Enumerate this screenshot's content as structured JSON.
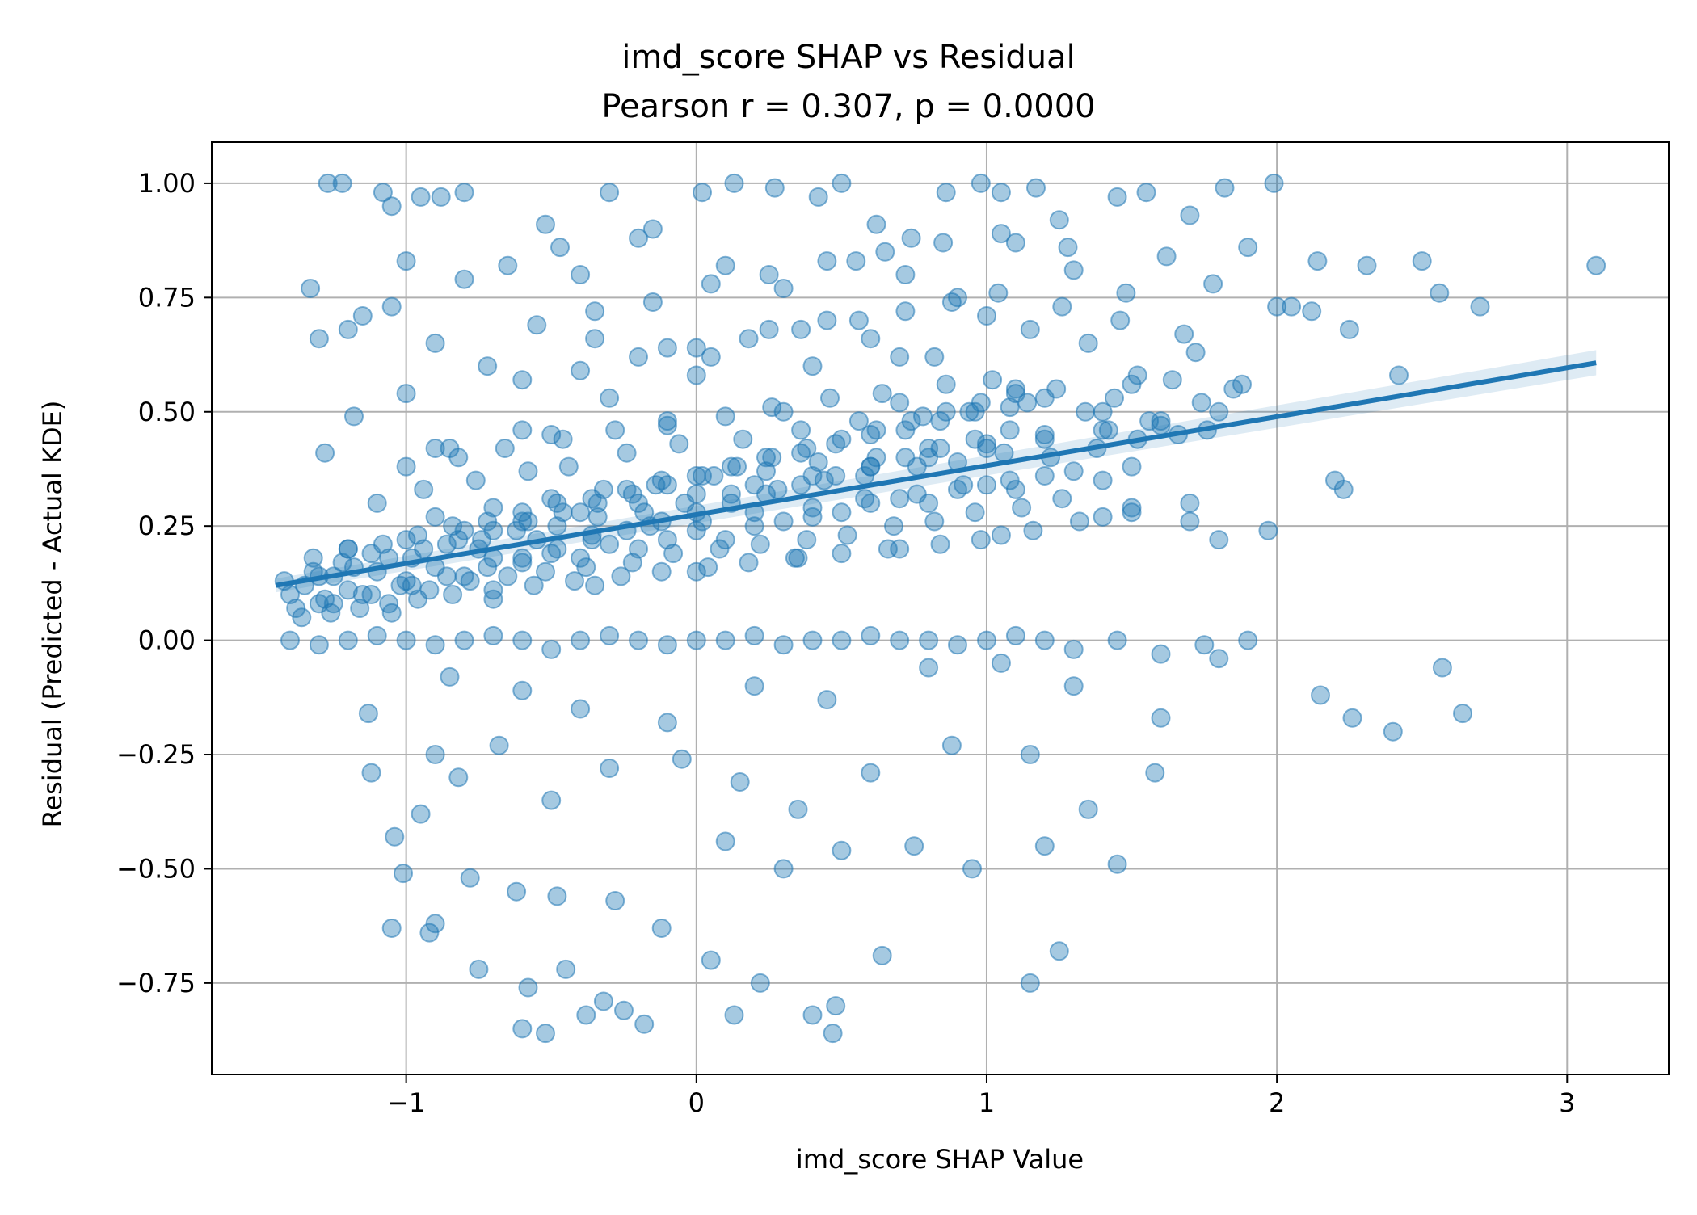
{
  "chart_data": {
    "type": "scatter",
    "title": "imd_score SHAP vs Residual",
    "subtitle": "Pearson r = 0.307, p = 0.0000",
    "xlabel": "imd_score SHAP Value",
    "ylabel": "Residual (Predicted - Actual KDE)",
    "xlim": [
      -1.67,
      3.35
    ],
    "ylim": [
      -0.95,
      1.09
    ],
    "x_ticks": [
      -1,
      0,
      1,
      2,
      3
    ],
    "x_tick_labels": [
      "−1",
      "0",
      "1",
      "2",
      "3"
    ],
    "y_ticks": [
      -0.75,
      -0.5,
      -0.25,
      0.0,
      0.25,
      0.5,
      0.75,
      1.0
    ],
    "y_tick_labels": [
      "−0.75",
      "−0.50",
      "−0.25",
      "0.00",
      "0.25",
      "0.50",
      "0.75",
      "1.00"
    ],
    "grid": true,
    "point_color": "#1f77b4",
    "point_alpha": 0.4,
    "regression": {
      "x": [
        -1.45,
        3.1
      ],
      "y": [
        0.12,
        0.607
      ],
      "ci_upper": [
        0.135,
        0.635
      ],
      "ci_lower": [
        0.105,
        0.58
      ]
    },
    "points": {
      "x": [
        -1.27,
        -1.22,
        -1.08,
        -1.05,
        -0.95,
        -0.88,
        -0.8,
        -0.52,
        -0.47,
        -0.3,
        -0.15,
        0.02,
        0.13,
        0.27,
        0.42,
        0.5,
        0.62,
        0.74,
        0.86,
        0.98,
        1.05,
        1.17,
        1.25,
        1.45,
        1.55,
        1.7,
        1.82,
        1.99,
        -1.3,
        -1.15,
        -1.0,
        -0.8,
        -0.65,
        -0.4,
        -0.2,
        0.1,
        0.3,
        0.55,
        0.72,
        0.9,
        1.1,
        1.3,
        1.48,
        1.62,
        1.78,
        1.9,
        2.05,
        2.14,
        2.31,
        2.5,
        2.56,
        2.7,
        3.1,
        -1.33,
        -1.2,
        -1.05,
        -0.9,
        -0.72,
        -0.55,
        -0.35,
        -0.1,
        0.05,
        0.25,
        0.45,
        0.6,
        0.82,
        1.0,
        1.15,
        1.35,
        1.52,
        1.72,
        1.85,
        2.0,
        2.12,
        2.25,
        2.42,
        1.97,
        2.2,
        2.23,
        1.8,
        1.7,
        1.5,
        -1.28,
        -1.18,
        -1.0,
        -0.85,
        -0.6,
        -0.3,
        0.0,
        0.4,
        0.7,
        1.1,
        1.4,
        -1.13,
        -1.12,
        -0.85,
        -0.9,
        -0.6,
        -0.4,
        -0.1,
        0.2,
        0.45,
        0.8,
        1.05,
        1.3,
        1.6,
        1.8,
        2.15,
        2.26,
        2.4,
        2.57,
        2.64,
        -1.04,
        -0.95,
        -0.82,
        -0.68,
        -0.5,
        -0.3,
        -0.05,
        0.15,
        0.35,
        0.6,
        0.88,
        1.15,
        1.35,
        1.58,
        -1.01,
        -0.9,
        -0.78,
        -0.62,
        -0.48,
        -0.28,
        -0.12,
        0.1,
        0.3,
        0.5,
        0.75,
        0.95,
        1.2,
        1.45,
        -1.05,
        -0.92,
        -0.75,
        -0.58,
        -0.45,
        -0.32,
        -0.18,
        0.05,
        0.22,
        0.48,
        0.64,
        -0.6,
        -0.52,
        -0.38,
        -0.25,
        0.13,
        0.4,
        0.47,
        1.15,
        1.25,
        -1.4,
        -1.35,
        -1.3,
        -1.25,
        -1.2,
        -1.1,
        -1.0,
        -0.9,
        -0.8,
        -0.7,
        -0.6,
        -0.5,
        -0.4,
        -0.3,
        -0.2,
        -0.1,
        0.0,
        0.1,
        0.2,
        0.3,
        0.4,
        0.5,
        0.6,
        0.7,
        0.8,
        0.9,
        1.0,
        1.1,
        1.2,
        -1.38,
        -1.28,
        -1.15,
        -1.02,
        -0.92,
        -0.78,
        -0.65,
        -0.52,
        -0.38,
        -0.22,
        -0.08,
        0.08,
        0.22,
        0.38,
        0.52,
        0.68,
        0.82,
        0.96,
        1.12,
        1.26,
        1.4,
        -1.42,
        -1.32,
        -1.22,
        -1.12,
        -0.98,
        -0.86,
        -0.74,
        -0.62,
        -0.48,
        -0.34,
        -0.18,
        -0.04,
        0.12,
        0.28,
        0.44,
        0.58,
        0.76,
        0.9,
        1.06,
        1.22,
        1.38,
        1.52,
        -1.36,
        -1.26,
        -1.16,
        -1.06,
        -0.96,
        -0.84,
        -0.7,
        -0.56,
        -0.42,
        -0.26,
        -0.12,
        0.04,
        0.18,
        0.34,
        0.5,
        0.66,
        0.84,
        0.98,
        1.16,
        1.32,
        1.5,
        1.66,
        -1.1,
        -0.94,
        -0.76,
        -0.58,
        -0.44,
        -0.24,
        -0.06,
        0.16,
        0.36,
        0.56,
        0.78,
        0.94,
        1.14,
        1.34,
        1.56,
        1.74,
        1.88,
        -1.0,
        -0.82,
        -0.66,
        -0.46,
        -0.28,
        -0.1,
        0.1,
        0.26,
        0.46,
        0.64,
        0.86,
        1.02,
        1.24,
        1.44,
        1.64,
        -0.9,
        -0.7,
        -0.5,
        -0.32,
        -0.14,
        0.06,
        0.24,
        0.42,
        0.62,
        0.8,
        1.0,
        1.2,
        1.42,
        1.6,
        1.76,
        -0.75,
        -0.55,
        -0.36,
        -0.16,
        0.02,
        0.2,
        0.4,
        0.58,
        0.76,
        0.92,
        1.08,
        1.3,
        1.5,
        -0.6,
        -0.4,
        -0.2,
        0.0,
        0.18,
        0.36,
        0.56,
        0.72,
        0.88,
        1.04,
        1.26,
        1.46,
        1.68,
        -0.35,
        -0.15,
        0.05,
        0.25,
        0.45,
        0.65,
        0.85,
        1.05,
        1.28,
        -1.4,
        -1.3,
        -1.2,
        -1.1,
        -1.0,
        -0.9,
        -0.8,
        -0.7,
        -0.6,
        -0.5,
        -0.4,
        -0.3,
        -0.2,
        -0.1,
        0.0,
        0.1,
        0.2,
        0.3,
        0.4,
        0.5,
        0.6,
        0.7,
        0.8,
        0.9,
        1.0,
        1.1,
        1.2,
        1.3,
        1.45,
        1.6,
        1.75,
        1.9,
        -1.2,
        -1.0,
        -0.8,
        -0.6,
        -0.4,
        -0.2,
        0.0,
        0.2,
        0.4,
        0.6,
        0.8,
        1.0,
        1.2,
        1.4,
        1.6,
        1.8,
        -0.9,
        -0.5,
        -0.1,
        0.3,
        0.7,
        1.1,
        1.5,
        -1.05,
        -0.7,
        -0.35,
        0.0,
        0.35,
        0.7,
        1.05,
        1.4,
        1.7,
        -1.3,
        -1.18,
        -1.06,
        -0.94,
        -0.82,
        -0.7,
        -0.58,
        -0.46,
        -0.34,
        -0.22,
        -0.1,
        0.02,
        0.14,
        0.26,
        0.38,
        0.5,
        0.62,
        0.74,
        0.86,
        0.98,
        -1.25,
        -1.12,
        -0.98,
        -0.86,
        -0.72,
        -0.6,
        -0.48,
        -0.36,
        -0.24,
        -0.12,
        0.0,
        0.12,
        0.24,
        0.36,
        0.48,
        0.6,
        0.72,
        0.84,
        0.96,
        1.08,
        -1.32,
        -1.2,
        -1.08,
        -0.96,
        -0.84,
        -0.72,
        -0.6,
        -0.48,
        -0.36,
        -0.24,
        -0.12,
        0.0,
        0.12,
        0.24,
        0.36,
        0.48,
        0.6,
        0.72,
        0.84,
        0.96,
        1.08,
        1.2
      ],
      "y": [
        1.0,
        1.0,
        0.98,
        0.95,
        0.97,
        0.97,
        0.98,
        0.91,
        0.86,
        0.98,
        0.9,
        0.98,
        1.0,
        0.99,
        0.97,
        1.0,
        0.91,
        0.88,
        0.98,
        1.0,
        0.98,
        0.99,
        0.92,
        0.97,
        0.98,
        0.93,
        0.99,
        1.0,
        0.66,
        0.71,
        0.83,
        0.79,
        0.82,
        0.8,
        0.88,
        0.82,
        0.77,
        0.83,
        0.8,
        0.75,
        0.87,
        0.81,
        0.76,
        0.84,
        0.78,
        0.86,
        0.73,
        0.83,
        0.82,
        0.83,
        0.76,
        0.73,
        0.82,
        0.77,
        0.68,
        0.73,
        0.65,
        0.6,
        0.69,
        0.66,
        0.64,
        0.62,
        0.68,
        0.7,
        0.66,
        0.62,
        0.71,
        0.68,
        0.65,
        0.58,
        0.63,
        0.55,
        0.73,
        0.72,
        0.68,
        0.58,
        0.24,
        0.35,
        0.33,
        0.22,
        0.26,
        0.29,
        0.41,
        0.49,
        0.54,
        0.42,
        0.46,
        0.53,
        0.58,
        0.6,
        0.62,
        0.55,
        0.5,
        -0.16,
        -0.29,
        -0.08,
        -0.25,
        -0.11,
        -0.15,
        -0.18,
        -0.1,
        -0.13,
        -0.06,
        -0.05,
        -0.1,
        -0.17,
        -0.04,
        -0.12,
        -0.17,
        -0.2,
        -0.06,
        -0.16,
        -0.43,
        -0.38,
        -0.3,
        -0.23,
        -0.35,
        -0.28,
        -0.26,
        -0.31,
        -0.37,
        -0.29,
        -0.23,
        -0.25,
        -0.37,
        -0.29,
        -0.51,
        -0.62,
        -0.52,
        -0.55,
        -0.56,
        -0.57,
        -0.63,
        -0.44,
        -0.5,
        -0.46,
        -0.45,
        -0.5,
        -0.45,
        -0.49,
        -0.63,
        -0.64,
        -0.72,
        -0.76,
        -0.72,
        -0.79,
        -0.84,
        -0.7,
        -0.75,
        -0.8,
        -0.69,
        -0.85,
        -0.86,
        -0.82,
        -0.81,
        -0.82,
        -0.82,
        -0.86,
        -0.75,
        -0.68,
        0.1,
        0.12,
        0.08,
        0.14,
        0.11,
        0.15,
        0.13,
        0.16,
        0.14,
        0.18,
        0.17,
        0.19,
        0.18,
        0.21,
        0.2,
        0.22,
        0.24,
        0.22,
        0.25,
        0.26,
        0.27,
        0.28,
        0.3,
        0.31,
        0.3,
        0.33,
        0.34,
        0.33,
        0.36,
        0.07,
        0.09,
        0.1,
        0.12,
        0.11,
        0.13,
        0.14,
        0.15,
        0.16,
        0.17,
        0.19,
        0.2,
        0.21,
        0.22,
        0.23,
        0.25,
        0.26,
        0.28,
        0.29,
        0.31,
        0.35,
        0.13,
        0.15,
        0.17,
        0.19,
        0.18,
        0.21,
        0.22,
        0.24,
        0.25,
        0.27,
        0.28,
        0.3,
        0.32,
        0.33,
        0.35,
        0.36,
        0.38,
        0.39,
        0.41,
        0.4,
        0.42,
        0.44,
        0.05,
        0.06,
        0.07,
        0.08,
        0.09,
        0.1,
        0.11,
        0.12,
        0.13,
        0.14,
        0.15,
        0.16,
        0.17,
        0.18,
        0.19,
        0.2,
        0.21,
        0.22,
        0.24,
        0.26,
        0.28,
        0.45,
        0.3,
        0.33,
        0.35,
        0.37,
        0.38,
        0.41,
        0.43,
        0.44,
        0.46,
        0.48,
        0.49,
        0.5,
        0.52,
        0.5,
        0.48,
        0.52,
        0.56,
        0.38,
        0.4,
        0.42,
        0.44,
        0.46,
        0.47,
        0.49,
        0.51,
        0.53,
        0.54,
        0.56,
        0.57,
        0.55,
        0.53,
        0.57,
        0.27,
        0.29,
        0.31,
        0.33,
        0.34,
        0.36,
        0.37,
        0.39,
        0.4,
        0.42,
        0.43,
        0.45,
        0.46,
        0.47,
        0.46,
        0.2,
        0.22,
        0.23,
        0.25,
        0.26,
        0.28,
        0.29,
        0.31,
        0.32,
        0.34,
        0.35,
        0.37,
        0.38,
        0.57,
        0.59,
        0.62,
        0.64,
        0.66,
        0.68,
        0.7,
        0.72,
        0.74,
        0.76,
        0.73,
        0.7,
        0.67,
        0.72,
        0.74,
        0.78,
        0.8,
        0.83,
        0.85,
        0.87,
        0.89,
        0.86,
        0.0,
        -0.01,
        0.0,
        0.01,
        0.0,
        -0.01,
        0.0,
        0.01,
        0.0,
        -0.02,
        0.0,
        0.01,
        0.0,
        -0.01,
        0.0,
        0.0,
        0.01,
        -0.01,
        0.0,
        0.0,
        0.01,
        0.0,
        0.0,
        -0.01,
        0.0,
        0.01,
        0.0,
        -0.02,
        0.0,
        -0.03,
        -0.01,
        0.0,
        0.2,
        0.22,
        0.24,
        0.26,
        0.28,
        0.3,
        0.32,
        0.34,
        0.36,
        0.38,
        0.4,
        0.42,
        0.44,
        0.46,
        0.48,
        0.5,
        0.42,
        0.45,
        0.48,
        0.5,
        0.52,
        0.54,
        0.56,
        0.06,
        0.09,
        0.12,
        0.15,
        0.18,
        0.2,
        0.23,
        0.27,
        0.3,
        0.14,
        0.16,
        0.18,
        0.2,
        0.22,
        0.24,
        0.26,
        0.28,
        0.3,
        0.32,
        0.34,
        0.36,
        0.38,
        0.4,
        0.42,
        0.44,
        0.46,
        0.48,
        0.5,
        0.52,
        0.08,
        0.1,
        0.12,
        0.14,
        0.16,
        0.18,
        0.2,
        0.22,
        0.24,
        0.26,
        0.28,
        0.3,
        0.32,
        0.34,
        0.36,
        0.38,
        0.4,
        0.42,
        0.44,
        0.46,
        0.18,
        0.2,
        0.21,
        0.23,
        0.25,
        0.26,
        0.28,
        0.3,
        0.31,
        0.33,
        0.35,
        0.36,
        0.38,
        0.4,
        0.41,
        0.43,
        0.45,
        0.46,
        0.48,
        0.5,
        0.51,
        0.53
      ]
    }
  }
}
